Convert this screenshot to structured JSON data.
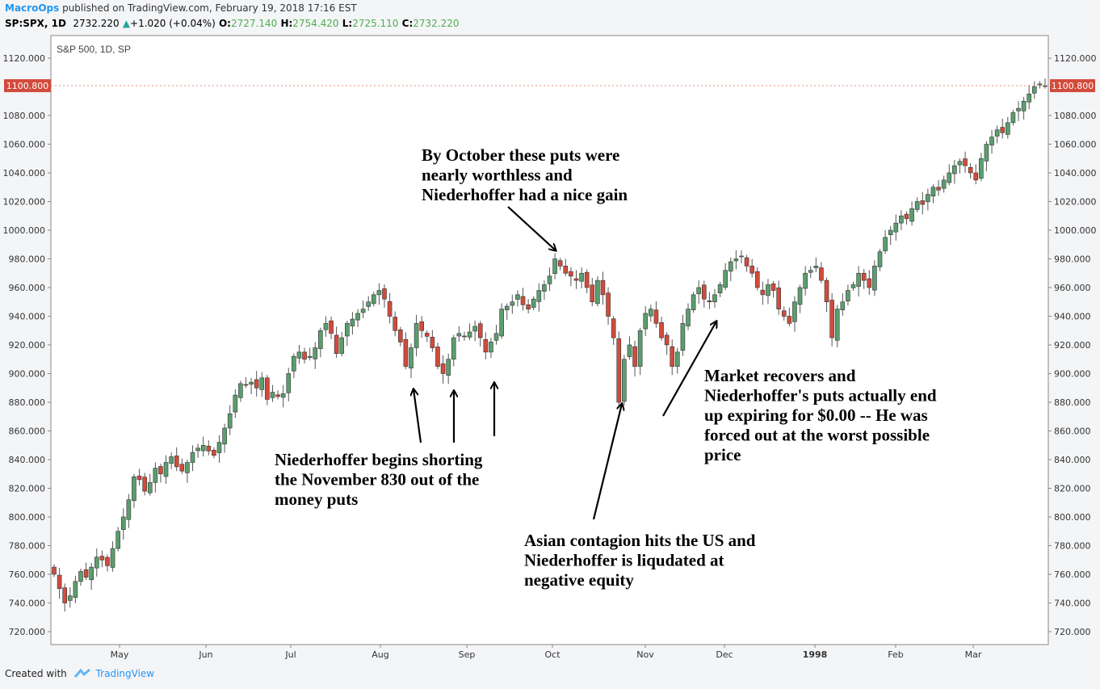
{
  "header": {
    "author": "MacroOps",
    "published_text": "published on TradingView.com, February 19, 2018 17:16 EST",
    "symbol": "SP:SPX, 1D",
    "last": "2732.220",
    "change_arrow": "▲",
    "change": "+1.020 (+0.04%)",
    "o_label": "O:",
    "o_val": "2727.140",
    "h_label": "H:",
    "h_val": "2754.420",
    "l_label": "L:",
    "l_val": "2725.110",
    "c_label": "C:",
    "c_val": "2732.220"
  },
  "chart_label": "S&P 500, 1D, SP",
  "price_tag": "1100.800",
  "footer": {
    "created_with": "Created with",
    "brand": "TradingView"
  },
  "colors": {
    "up": "#5b9e6e",
    "down": "#d24b3c",
    "tag": "#d24b3c",
    "grid_axis": "#999999"
  },
  "annotations": [
    {
      "id": "ann-october",
      "lines": [
        "By October these puts were",
        "nearly worthless and",
        "Niederhoffer had a nice gain"
      ]
    },
    {
      "id": "ann-shorting",
      "lines": [
        "Niederhoffer begins shorting",
        "the November 830 out of the",
        "money puts"
      ]
    },
    {
      "id": "ann-contagion",
      "lines": [
        "Asian contagion hits the US and",
        "Niederhoffer is liqudated at",
        "negative equity"
      ]
    },
    {
      "id": "ann-recovers",
      "lines": [
        "Market recovers and",
        "Niederhoffer's puts actually end",
        "up expiring for $0.00 -- He was",
        "forced out at the worst possible",
        "price"
      ]
    }
  ],
  "chart_data": {
    "type": "candlestick",
    "title": "S&P 500, 1D, SP",
    "ylim": [
      710,
      1127
    ],
    "y_ticks": [
      "720.000",
      "740.000",
      "760.000",
      "780.000",
      "800.000",
      "820.000",
      "840.000",
      "860.000",
      "880.000",
      "900.000",
      "920.000",
      "940.000",
      "960.000",
      "980.000",
      "1000.000",
      "1020.000",
      "1040.000",
      "1060.000",
      "1080.000",
      "1120.000"
    ],
    "x_labels": [
      "May",
      "Jun",
      "Jul",
      "Aug",
      "Sep",
      "Oct",
      "Nov",
      "Dec",
      "1998",
      "Feb",
      "Mar"
    ],
    "last_value": 1100.8,
    "closes": [
      760,
      750,
      740,
      745,
      755,
      762,
      758,
      765,
      772,
      770,
      766,
      778,
      790,
      800,
      812,
      828,
      826,
      818,
      824,
      834,
      830,
      838,
      842,
      835,
      832,
      838,
      845,
      848,
      850,
      846,
      843,
      852,
      862,
      872,
      885,
      893,
      892,
      894,
      890,
      897,
      882,
      887,
      884,
      886,
      900,
      912,
      915,
      910,
      912,
      918,
      930,
      935,
      928,
      914,
      925,
      935,
      938,
      942,
      945,
      950,
      955,
      958,
      952,
      940,
      930,
      922,
      905,
      918,
      935,
      930,
      926,
      918,
      905,
      900,
      910,
      925,
      928,
      926,
      929,
      933,
      925,
      915,
      922,
      928,
      945,
      947,
      950,
      955,
      948,
      945,
      952,
      958,
      962,
      968,
      980,
      975,
      970,
      968,
      965,
      970,
      960,
      950,
      965,
      955,
      940,
      925,
      880,
      910,
      920,
      905,
      930,
      942,
      945,
      935,
      925,
      920,
      905,
      915,
      935,
      945,
      955,
      960,
      952,
      950,
      955,
      962,
      972,
      978,
      980,
      982,
      975,
      970,
      960,
      955,
      962,
      958,
      945,
      940,
      935,
      950,
      960,
      970,
      972,
      975,
      965,
      950,
      925,
      945,
      950,
      958,
      962,
      970,
      965,
      960,
      975,
      985,
      995,
      1000,
      1005,
      1010,
      1008,
      1015,
      1020,
      1018,
      1025,
      1030,
      1028,
      1035,
      1040,
      1045,
      1048,
      1045,
      1040,
      1035,
      1050,
      1060,
      1065,
      1070,
      1068,
      1075,
      1082,
      1085,
      1090,
      1095,
      1100,
      1102,
      1100.8
    ],
    "series": [
      {
        "name": "S&P 500",
        "kind": "ohlc",
        "note": "daily candles Apr 1997 - Mar 1998; closes listed in order"
      }
    ]
  }
}
